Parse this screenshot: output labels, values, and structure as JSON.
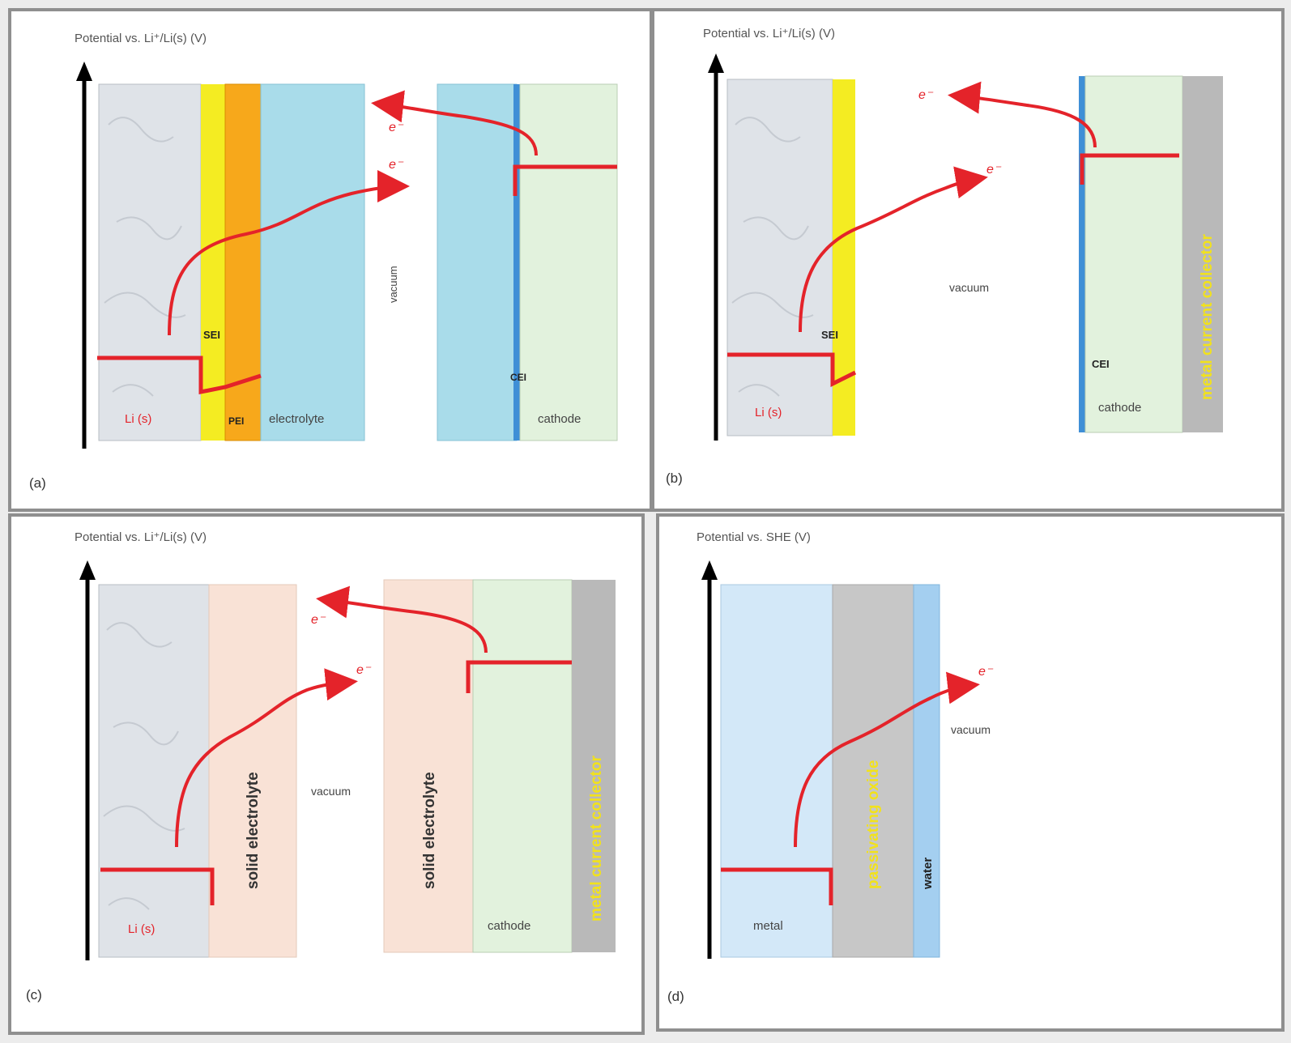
{
  "colors": {
    "lithium": "#dfe3e8",
    "sei_yellow": "#f4ec22",
    "pei_orange": "#f7a81b",
    "electrolyte": "#a9dcea",
    "cathode": "#e2f2dd",
    "cei_blue": "#3f8fd6",
    "collector_gray": "#b9b9b9",
    "solid_electrolyte": "#f9e2d6",
    "metal": "#d3e8f8",
    "oxide": "#c7c7c7",
    "water": "#a4cff0",
    "energy_level": "#e4232a",
    "collector_text": "#f2e21b"
  },
  "panel_a": {
    "tag": "(a)",
    "axis_label": "Potential vs. Li⁺/Li(s) (V)",
    "li_label": "Li (s)",
    "sei_label": "SEI",
    "pei_label": "PEI",
    "electrolyte_label": "electrolyte",
    "vacuum_label": "vacuum",
    "cei_label": "CEI",
    "cathode_label": "cathode",
    "electron_out": "e⁻",
    "electron_in": "e⁻"
  },
  "panel_b": {
    "tag": "(b)",
    "axis_label": "Potential vs. Li⁺/Li(s) (V)",
    "li_label": "Li (s)",
    "sei_label": "SEI",
    "vacuum_label": "vacuum",
    "cei_label": "CEI",
    "cathode_label": "cathode",
    "collector_label": "metal current collector",
    "electron_out": "e⁻",
    "electron_in": "e⁻"
  },
  "panel_c": {
    "tag": "(c)",
    "axis_label": "Potential vs. Li⁺/Li(s) (V)",
    "li_label": "Li (s)",
    "solid_electrolyte_left": "solid electrolyte",
    "solid_electrolyte_right": "solid electrolyte",
    "vacuum_label": "vacuum",
    "cathode_label": "cathode",
    "collector_label": "metal current collector",
    "electron_out": "e⁻",
    "electron_in": "e⁻"
  },
  "panel_d": {
    "tag": "(d)",
    "axis_label": "Potential vs. SHE (V)",
    "metal_label": "metal",
    "oxide_label": "passivating oxide",
    "water_label": "water",
    "vacuum_label": "vacuum",
    "electron_in": "e⁻"
  }
}
